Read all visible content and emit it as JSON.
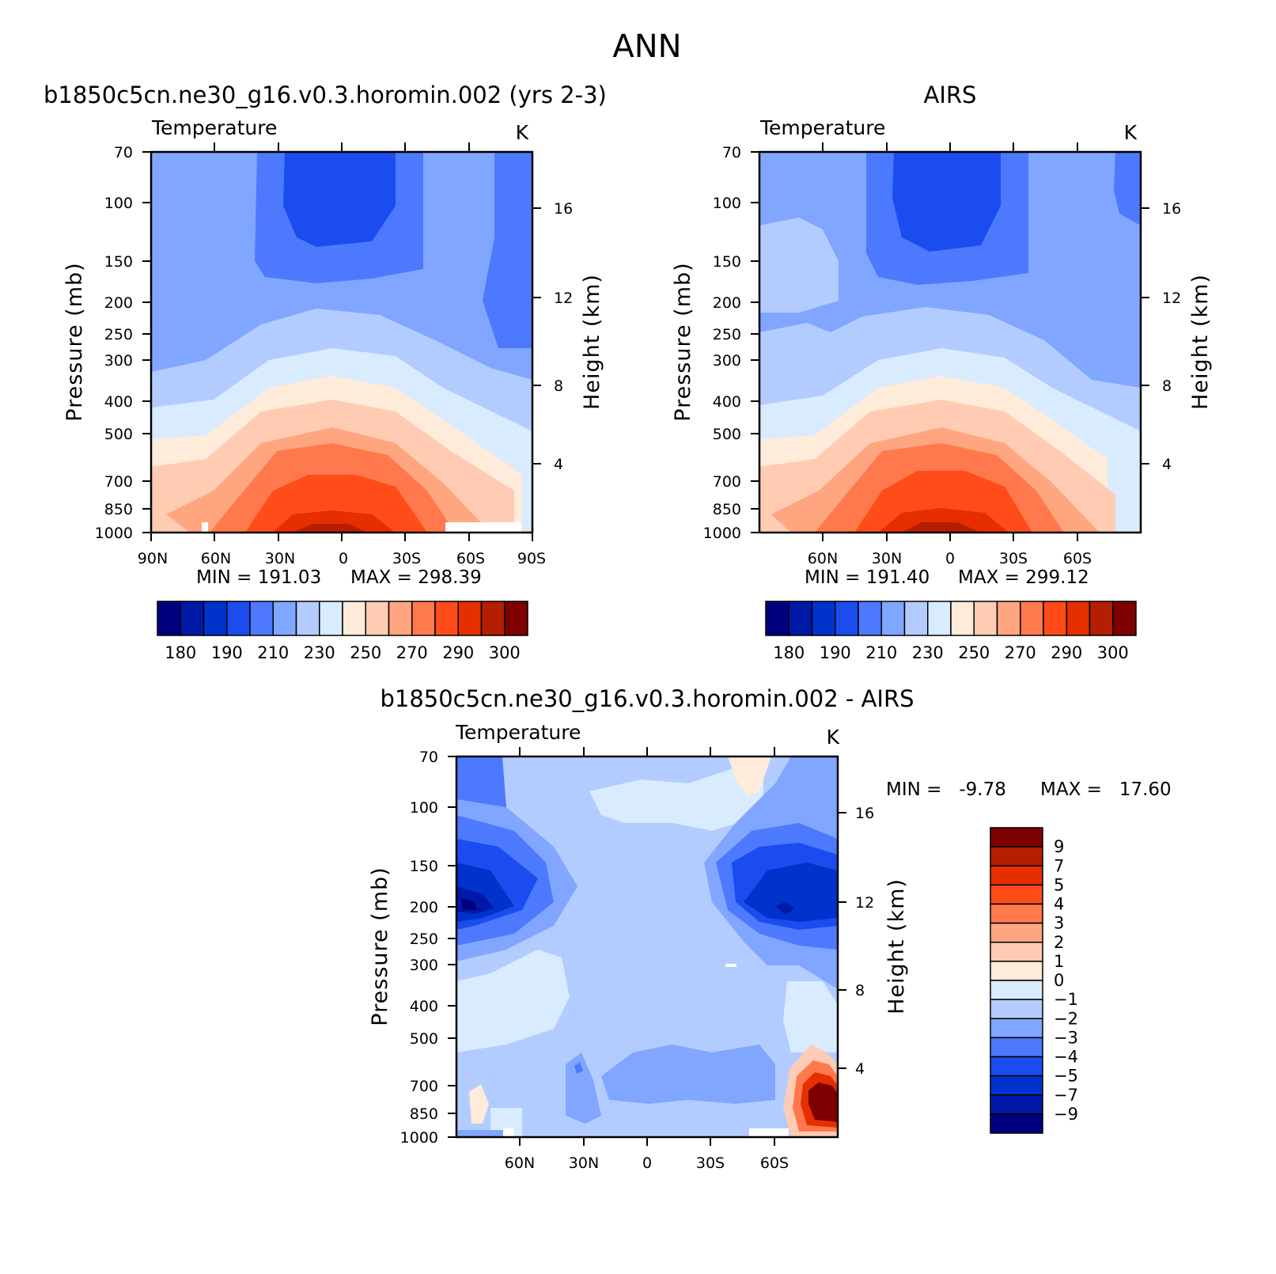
{
  "page_title": "ANN",
  "colors": {
    "full_scale": [
      "#00007f",
      "#0019a8",
      "#0033cc",
      "#1a4cf0",
      "#4d79ff",
      "#80a6ff",
      "#b3ccff",
      "#d9ebff",
      "#ffebd9",
      "#ffccb3",
      "#ffa680",
      "#ff794d",
      "#ff4c19",
      "#e62e00",
      "#b31f00",
      "#7f0000"
    ],
    "diff_scale": [
      "#00007f",
      "#0019a8",
      "#0033cc",
      "#1a4cf0",
      "#4d79ff",
      "#80a6ff",
      "#b3ccff",
      "#d9ebff",
      "#ffebd9",
      "#ffccb3",
      "#ffa680",
      "#ff794d",
      "#ff4c19",
      "#e62e00",
      "#b31f00",
      "#7f0000"
    ],
    "background": "#ffffff"
  },
  "chart_data": [
    {
      "type": "heatmap",
      "panel": "model",
      "title": "b1850c5cn.ne30_g16.v0.3.horomin.002 (yrs 2-3)",
      "variable": "Temperature",
      "units": "K",
      "xlabel": "",
      "x_ticklabels": [
        "90N",
        "60N",
        "30N",
        "0",
        "30S",
        "60S",
        "90S"
      ],
      "x_range": [
        90,
        -90
      ],
      "ylabel": "Pressure (mb)",
      "y_ticklabels": [
        "70",
        "100",
        "150",
        "200",
        "250",
        "300",
        "400",
        "500",
        "700",
        "850",
        "1000"
      ],
      "y_range": [
        1000,
        70
      ],
      "right_label": "Height (km)",
      "right_ticklabels": [
        "16",
        "12",
        "8",
        "4"
      ],
      "min_label": "MIN = 191.03",
      "max_label": "MAX = 298.39",
      "min": 191.03,
      "max": 298.39,
      "contour_levels": [
        180,
        185,
        190,
        200,
        210,
        220,
        230,
        240,
        250,
        260,
        270,
        280,
        290,
        295,
        300
      ],
      "colorbar_labels": [
        "180",
        "190",
        "210",
        "230",
        "250",
        "270",
        "290",
        "300"
      ]
    },
    {
      "type": "heatmap",
      "panel": "obs",
      "title": "AIRS",
      "variable": "Temperature",
      "units": "K",
      "x_ticklabels": [
        "60N",
        "30N",
        "0",
        "30S",
        "60S"
      ],
      "x_range": [
        90,
        -90
      ],
      "ylabel": "Pressure (mb)",
      "y_ticklabels": [
        "70",
        "100",
        "150",
        "200",
        "250",
        "300",
        "400",
        "500",
        "700",
        "850",
        "1000"
      ],
      "y_range": [
        1000,
        70
      ],
      "right_label": "Height (km)",
      "right_ticklabels": [
        "16",
        "12",
        "8",
        "4"
      ],
      "min_label": "MIN = 191.40",
      "max_label": "MAX = 299.12",
      "min": 191.4,
      "max": 299.12,
      "contour_levels": [
        180,
        185,
        190,
        200,
        210,
        220,
        230,
        240,
        250,
        260,
        270,
        280,
        290,
        295,
        300
      ],
      "colorbar_labels": [
        "180",
        "190",
        "210",
        "230",
        "250",
        "270",
        "290",
        "300"
      ]
    },
    {
      "type": "heatmap",
      "panel": "difference",
      "title": "b1850c5cn.ne30_g16.v0.3.horomin.002 - AIRS",
      "variable": "Temperature",
      "units": "K",
      "x_ticklabels": [
        "60N",
        "30N",
        "0",
        "30S",
        "60S"
      ],
      "x_range": [
        90,
        -90
      ],
      "ylabel": "Pressure (mb)",
      "y_ticklabels": [
        "70",
        "100",
        "150",
        "200",
        "250",
        "300",
        "400",
        "500",
        "700",
        "850",
        "1000"
      ],
      "y_range": [
        1000,
        70
      ],
      "right_label": "Height (km)",
      "right_ticklabels": [
        "16",
        "12",
        "8",
        "4"
      ],
      "min_label": "MIN =   -9.78",
      "max_label": "MAX =   17.60",
      "min": -9.78,
      "max": 17.6,
      "contour_levels": [
        -9,
        -7,
        -5,
        -4,
        -3,
        -2,
        -1,
        0,
        1,
        2,
        3,
        4,
        5,
        7,
        9
      ],
      "colorbar_labels": [
        "9",
        "7",
        "5",
        "4",
        "3",
        "2",
        "1",
        "0",
        "-1",
        "-2",
        "-3",
        "-4",
        "-5",
        "-7",
        "-9"
      ]
    }
  ]
}
